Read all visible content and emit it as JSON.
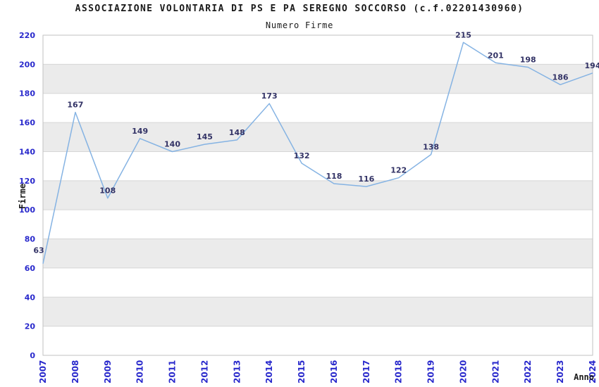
{
  "header": {
    "title": "ASSOCIAZIONE VOLONTARIA DI PS E PA SEREGNO SOCCORSO (c.f.02201430960)",
    "subtitle": "Numero Firme"
  },
  "chart_data": {
    "type": "line",
    "title": "ASSOCIAZIONE VOLONTARIA DI PS E PA SEREGNO SOCCORSO (c.f.02201430960)",
    "subtitle": "Numero Firme",
    "xlabel": "Anno",
    "ylabel": "Firme",
    "x": [
      "2007",
      "2008",
      "2009",
      "2010",
      "2011",
      "2012",
      "2013",
      "2014",
      "2015",
      "2016",
      "2017",
      "2018",
      "2019",
      "2020",
      "2021",
      "2022",
      "2023",
      "2024"
    ],
    "values": [
      63,
      167,
      108,
      149,
      140,
      145,
      148,
      173,
      132,
      118,
      116,
      122,
      138,
      215,
      201,
      198,
      186,
      194
    ],
    "ylim": [
      0,
      220
    ],
    "ytick_step": 20,
    "yticks": [
      0,
      20,
      40,
      60,
      80,
      100,
      120,
      140,
      160,
      180,
      200,
      220
    ],
    "grid": "horizontal-bands",
    "legend": "none",
    "colors": {
      "line": "#85B3E3",
      "value_label": "#333366",
      "tick_label": "#2929CC",
      "band": "#EBEBEB",
      "grid_line": "#D6D6D6",
      "plot_border": "#C2C2C2",
      "title_text": "#1A1A1A",
      "background": "#FFFFFF"
    }
  }
}
